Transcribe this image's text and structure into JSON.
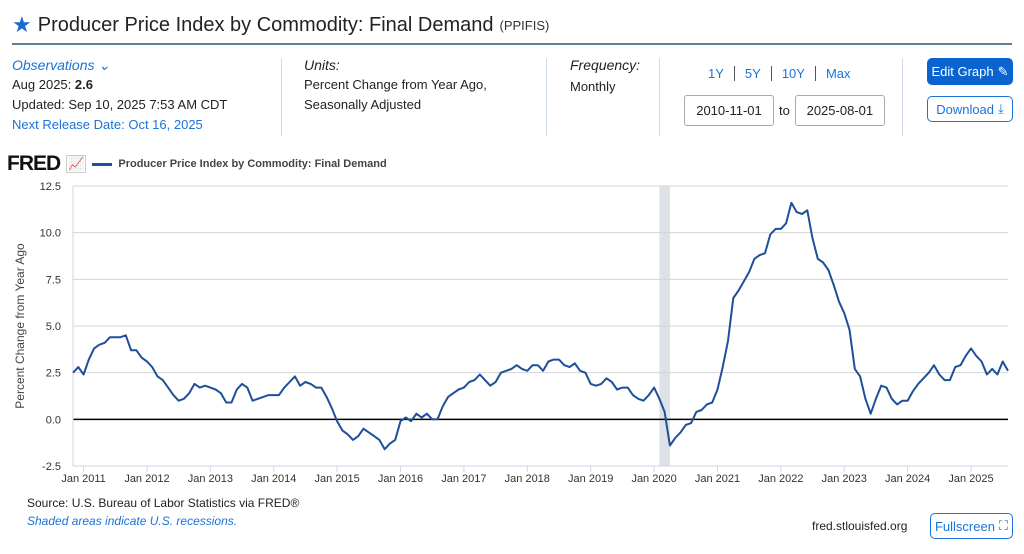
{
  "header": {
    "title": "Producer Price Index by Commodity: Final Demand",
    "series_id": "(PPIFIS)"
  },
  "observations": {
    "label": "Observations",
    "date_label": "Aug 2025:",
    "value": "2.6",
    "updated": "Updated: Sep 10, 2025 7:53 AM CDT",
    "next_release": "Next Release Date: Oct 16, 2025"
  },
  "units": {
    "label": "Units:",
    "line1": "Percent Change from Year Ago,",
    "line2": "Seasonally Adjusted"
  },
  "frequency": {
    "label": "Frequency:",
    "value": "Monthly"
  },
  "ranges": [
    "1Y",
    "5Y",
    "10Y",
    "Max"
  ],
  "dates": {
    "start": "2010-11-01",
    "sep": "to",
    "end": "2025-08-01"
  },
  "buttons": {
    "edit": "Edit Graph",
    "download": "Download",
    "fullscreen": "Fullscreen"
  },
  "footer": {
    "source": "Source: U.S. Bureau of Labor Statistics via FRED®",
    "recession_note": "Shaded areas indicate U.S. recessions.",
    "site": "fred.stlouisfed.org"
  },
  "logo": "FRED",
  "colors": {
    "line": "#1f4f99",
    "accent": "#1a6ad2",
    "recession": "#dde2e8"
  },
  "chart_data": {
    "type": "line",
    "title": "Producer Price Index by Commodity: Final Demand",
    "legend": "Producer Price Index by Commodity: Final Demand",
    "ylabel": "Percent Change from Year Ago",
    "xlabel": "",
    "ylim": [
      -2.5,
      12.5
    ],
    "yticks": [
      "12.5",
      "10.0",
      "7.5",
      "5.0",
      "2.5",
      "0.0",
      "-2.5"
    ],
    "xticks": [
      "Jan 2011",
      "Jan 2012",
      "Jan 2013",
      "Jan 2014",
      "Jan 2015",
      "Jan 2016",
      "Jan 2017",
      "Jan 2018",
      "Jan 2019",
      "Jan 2020",
      "Jan 2021",
      "Jan 2022",
      "Jan 2023",
      "Jan 2024",
      "Jan 2025"
    ],
    "start": "2010-11",
    "end": "2025-08",
    "recessions": [
      [
        "2020-02",
        "2020-04"
      ]
    ],
    "values": [
      2.5,
      2.8,
      2.4,
      3.2,
      3.8,
      4.0,
      4.1,
      4.4,
      4.4,
      4.4,
      4.5,
      3.7,
      3.7,
      3.3,
      3.1,
      2.8,
      2.3,
      2.1,
      1.7,
      1.3,
      1.0,
      1.1,
      1.4,
      1.9,
      1.7,
      1.8,
      1.7,
      1.6,
      1.4,
      0.9,
      0.9,
      1.6,
      1.9,
      1.7,
      1.0,
      1.1,
      1.2,
      1.3,
      1.3,
      1.3,
      1.7,
      2.0,
      2.3,
      1.8,
      2.0,
      1.9,
      1.7,
      1.7,
      1.2,
      0.6,
      -0.1,
      -0.6,
      -0.8,
      -1.1,
      -0.9,
      -0.5,
      -0.7,
      -0.9,
      -1.1,
      -1.6,
      -1.3,
      -1.1,
      -0.1,
      0.1,
      -0.1,
      0.3,
      0.1,
      0.3,
      0.0,
      0.0,
      0.7,
      1.2,
      1.4,
      1.6,
      1.7,
      2.0,
      2.1,
      2.4,
      2.1,
      1.8,
      2.0,
      2.5,
      2.6,
      2.7,
      2.9,
      2.7,
      2.6,
      2.9,
      2.9,
      2.6,
      3.1,
      3.2,
      3.2,
      2.9,
      2.8,
      3.0,
      2.6,
      2.5,
      1.9,
      1.8,
      1.9,
      2.2,
      2.0,
      1.6,
      1.7,
      1.7,
      1.3,
      1.1,
      1.0,
      1.3,
      1.7,
      1.1,
      0.4,
      -1.4,
      -1.0,
      -0.7,
      -0.3,
      -0.2,
      0.4,
      0.5,
      0.8,
      0.9,
      1.6,
      2.8,
      4.2,
      6.5,
      6.9,
      7.4,
      7.9,
      8.6,
      8.8,
      8.9,
      9.9,
      10.2,
      10.2,
      10.5,
      11.6,
      11.1,
      11.0,
      11.2,
      9.7,
      8.6,
      8.4,
      8.0,
      7.2,
      6.3,
      5.7,
      4.8,
      2.7,
      2.3,
      1.1,
      0.3,
      1.1,
      1.8,
      1.7,
      1.1,
      0.8,
      1.0,
      1.0,
      1.5,
      1.9,
      2.2,
      2.5,
      2.9,
      2.4,
      2.1,
      2.1,
      2.8,
      2.9,
      3.4,
      3.8,
      3.4,
      3.1,
      2.4,
      2.7,
      2.4,
      3.1,
      2.6
    ]
  }
}
